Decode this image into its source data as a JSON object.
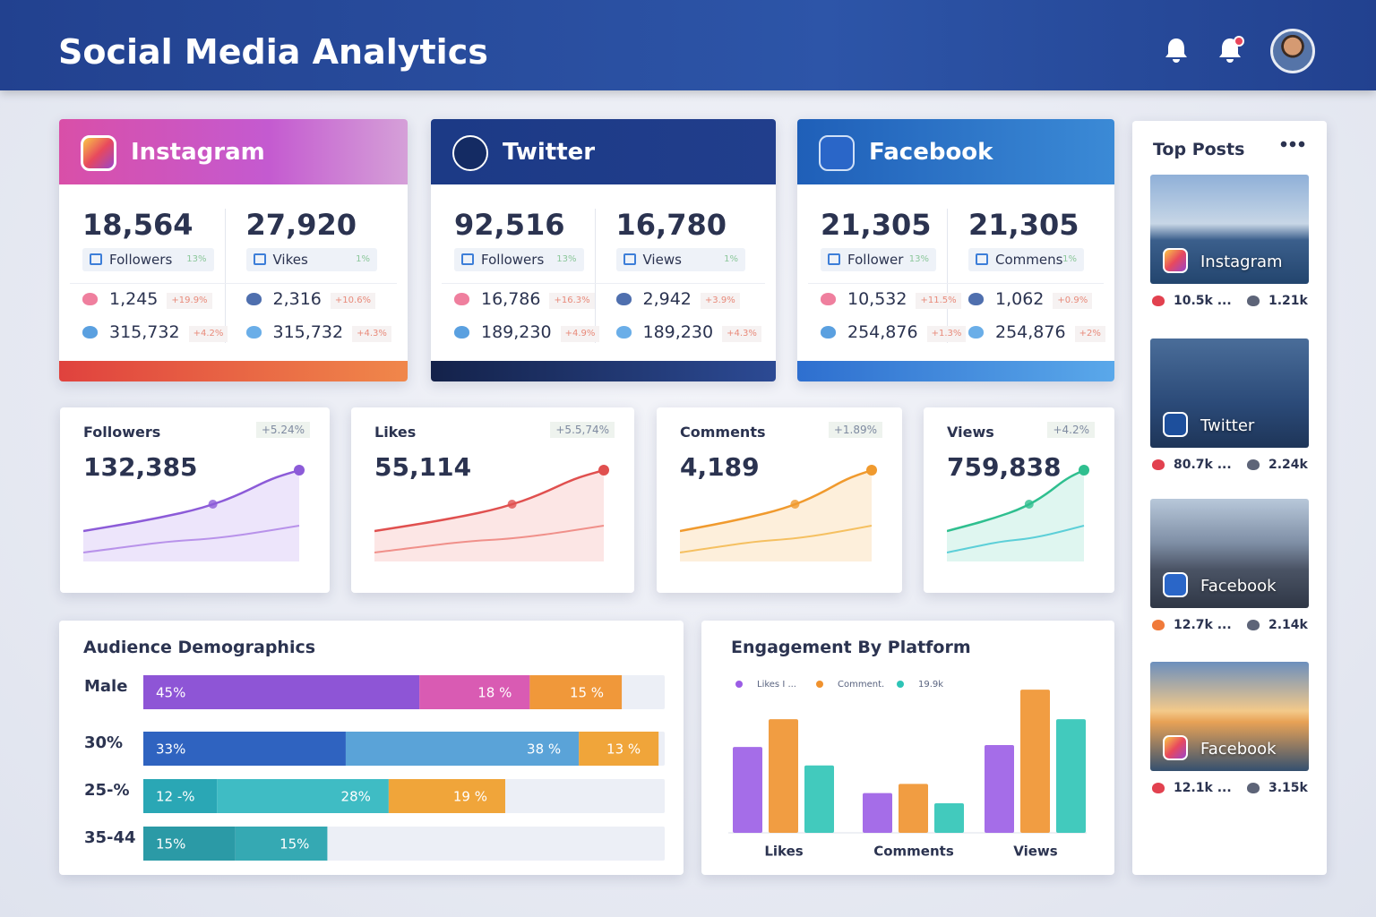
{
  "header": {
    "title": "Social Media Analytics"
  },
  "platforms": [
    {
      "name": "Instagram",
      "columns": [
        {
          "value": "18,564",
          "label": "Followers",
          "change": "13%",
          "rows": [
            {
              "value": "1,245",
              "change": "+19.9%"
            },
            {
              "value": "315,732",
              "change": "+4.2%"
            }
          ]
        },
        {
          "value": "27,920",
          "label": "Vikes",
          "change": "1%",
          "rows": [
            {
              "value": "2,316",
              "change": "+10.6%"
            },
            {
              "value": "315,732",
              "change": "+4.3%"
            }
          ]
        }
      ]
    },
    {
      "name": "Twitter",
      "columns": [
        {
          "value": "92,516",
          "label": "Followers",
          "change": "13%",
          "rows": [
            {
              "value": "16,786",
              "change": "+16.3%"
            },
            {
              "value": "189,230",
              "change": "+4.9%"
            }
          ]
        },
        {
          "value": "16,780",
          "label": "Views",
          "change": "1%",
          "rows": [
            {
              "value": "2,942",
              "change": "+3.9%"
            },
            {
              "value": "189,230",
              "change": "+4.3%"
            }
          ]
        }
      ]
    },
    {
      "name": "Facebook",
      "columns": [
        {
          "value": "21,305",
          "label": "Follower",
          "change": "13%",
          "rows": [
            {
              "value": "10,532",
              "change": "+11.5%"
            },
            {
              "value": "254,876",
              "change": "+1.3%"
            }
          ]
        },
        {
          "value": "21,305",
          "label": "Commens",
          "change": "1%",
          "rows": [
            {
              "value": "1,062",
              "change": "+0.9%"
            },
            {
              "value": "254,876",
              "change": "+2%"
            }
          ]
        }
      ]
    }
  ],
  "metrics": [
    {
      "title": "Followers",
      "value": "132,385",
      "change": "+5.24%"
    },
    {
      "title": "Likes",
      "value": "55,114",
      "change": "+5.5,74%"
    },
    {
      "title": "Comments",
      "value": "4,189",
      "change": "+1.89%"
    },
    {
      "title": "Views",
      "value": "759,838",
      "change": "+4.2%"
    }
  ],
  "chart_data": [
    {
      "type": "bar",
      "orientation": "horizontal",
      "stacked": true,
      "title": "Audience Demographics",
      "categories": [
        "Male",
        "30%",
        "25-%",
        "35-44"
      ],
      "xlim": [
        0,
        85
      ],
      "series": [
        {
          "colors": [
            "#8e55d6",
            "#2f63c0",
            "#2aa7b5",
            "#2b9aa6"
          ],
          "values": [
            45,
            33,
            12,
            15
          ],
          "value_labels": [
            "45%",
            "33%",
            "12 -%",
            "15%"
          ]
        },
        {
          "colors": [
            "#d95bb3",
            "#5aa3d8",
            "#3fbcc4",
            "#35a9b3"
          ],
          "values": [
            18,
            38,
            28,
            15
          ],
          "value_labels": [
            "18 %",
            "38 %",
            "28%",
            "15%"
          ]
        },
        {
          "colors": [
            "#f0983a",
            "#f0a53a",
            "#f0a53a",
            null
          ],
          "values": [
            15,
            13,
            19,
            null
          ],
          "value_labels": [
            "15 %",
            "13 %",
            "19 %",
            null
          ]
        }
      ]
    },
    {
      "type": "bar",
      "title": "Engagement By Platform",
      "categories": [
        "Likes",
        "Comments",
        "Views"
      ],
      "ylim": [
        0,
        160
      ],
      "series": [
        {
          "name": "Likes I ...",
          "color": "#9b5de5",
          "values": [
            93,
            43,
            95
          ]
        },
        {
          "name": "Comment.",
          "color": "#f0922e",
          "values": [
            123,
            53,
            155
          ]
        },
        {
          "name": "19.9k",
          "color": "#2ec4b6",
          "values": [
            73,
            32,
            123
          ]
        }
      ]
    }
  ],
  "top_posts": {
    "title": "Top Posts",
    "posts": [
      {
        "platform": "Instagram",
        "likes": "10.5k ...",
        "shares": "1.21k"
      },
      {
        "platform": "Twitter",
        "likes": "80.7k ...",
        "shares": "2.24k"
      },
      {
        "platform": "Facebook",
        "likes": "12.7k ...",
        "shares": "2.14k"
      },
      {
        "platform": "Facebook",
        "likes": "12.1k ...",
        "shares": "3.15k"
      }
    ]
  }
}
